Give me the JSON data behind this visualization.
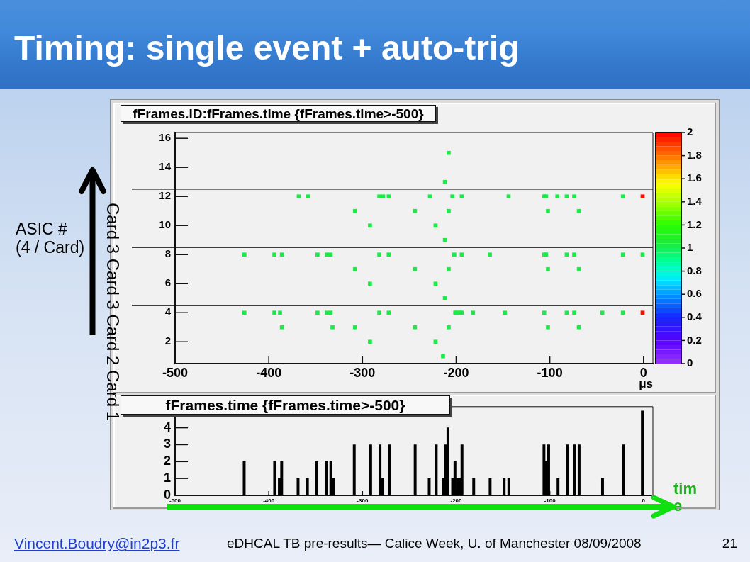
{
  "chart_data": [
    {
      "type": "scatter",
      "title": "Timing: single event + auto-trig",
      "subtitle": "fFrames.ID:fFrames.time {fFrames.time>-500}",
      "xlabel": "μs",
      "ylabel": "ASIC #\n(4 / Card)",
      "marker": "square",
      "x": [
        -208,
        -212,
        -368,
        -358,
        -282,
        -278,
        -272,
        -228,
        -204,
        -194,
        -144,
        -106,
        -104,
        -92,
        -82,
        -74,
        -22,
        -1,
        -308,
        -244,
        -208,
        -102,
        -69,
        -292,
        -222,
        -212,
        -426,
        -394,
        -386,
        -348,
        -338,
        -334,
        -282,
        -272,
        -202,
        -194,
        -164,
        -106,
        -104,
        -82,
        -74,
        -22,
        -1,
        -308,
        -244,
        -208,
        -102,
        -69,
        -292,
        -222,
        -212,
        -426,
        -394,
        -388,
        -348,
        -338,
        -334,
        -282,
        -272,
        -201,
        -199,
        -196,
        -194,
        -182,
        -148,
        -106,
        -82,
        -74,
        -44,
        -22,
        -1,
        -386,
        -332,
        -308,
        -244,
        -208,
        -102,
        -69,
        -292,
        -222,
        -214
      ],
      "values": [
        15,
        13,
        12,
        12,
        12,
        12,
        12,
        12,
        12,
        12,
        12,
        12,
        12,
        12,
        12,
        12,
        12,
        12,
        11,
        11,
        11,
        11,
        11,
        10,
        10,
        9,
        8,
        8,
        8,
        8,
        8,
        8,
        8,
        8,
        8,
        8,
        8,
        8,
        8,
        8,
        8,
        8,
        8,
        7,
        7,
        7,
        7,
        7,
        6,
        6,
        5,
        4,
        4,
        4,
        4,
        4,
        4,
        4,
        4,
        4,
        4,
        4,
        4,
        4,
        4,
        4,
        4,
        4,
        4,
        4,
        4,
        3,
        3,
        3,
        3,
        3,
        3,
        3,
        2,
        2,
        1
      ],
      "cvalues": [
        1,
        1,
        1,
        1,
        1,
        1,
        1,
        1,
        1,
        1,
        1,
        1,
        1,
        1,
        1,
        1,
        1,
        2,
        1,
        1,
        1,
        1,
        1,
        1,
        1,
        1,
        1,
        1,
        1,
        1,
        1,
        1,
        1,
        1,
        1,
        1,
        1,
        1,
        1,
        1,
        1,
        1,
        1,
        1,
        1,
        1,
        1,
        1,
        1,
        1,
        1,
        1,
        1,
        1,
        1,
        1,
        1,
        1,
        1,
        1,
        1,
        1,
        1,
        1,
        1,
        1,
        1,
        1,
        1,
        1,
        2,
        1,
        1,
        1,
        1,
        1,
        1,
        1,
        1,
        1,
        1
      ],
      "clim": [
        0,
        2
      ],
      "cticks": [
        0,
        0.2,
        0.4,
        0.6,
        0.8,
        1,
        1.2,
        1.4,
        1.6,
        1.8,
        2
      ],
      "xlim": [
        -500,
        10
      ],
      "xticks": [
        -500,
        -400,
        -300,
        -200,
        -100,
        0
      ],
      "ylim": [
        0.5,
        16.4
      ],
      "yticks": [
        2,
        4,
        6,
        8,
        10,
        12,
        14,
        16
      ],
      "ref_lines": [
        {
          "axis": "y",
          "value": 12.5,
          "color": "#000000"
        },
        {
          "axis": "y",
          "value": 8.5,
          "color": "#000000"
        },
        {
          "axis": "y",
          "value": 4.5,
          "color": "#000000"
        }
      ],
      "annotations": [
        "Card 3 Card 3 Card 2 Card 1"
      ]
    },
    {
      "type": "histogram",
      "title": "fFrames.time {fFrames.time>-500}",
      "xlabel": "time",
      "bins": [
        -500,
        -427.5,
        -425,
        -395,
        -392.5,
        -390,
        -387.5,
        -385,
        -370,
        -367.5,
        -360,
        -357.5,
        -350,
        -347.5,
        -340,
        -337.5,
        -335,
        -332.5,
        -330,
        -310,
        -307.5,
        -292.5,
        -290,
        -282.5,
        -280,
        -277.5,
        -272.5,
        -270,
        -245,
        -242.5,
        -230,
        -227.5,
        -222.5,
        -220,
        -215,
        -212.5,
        -210,
        -207.5,
        -205,
        -202.5,
        -200,
        -197.5,
        -195,
        -192.5,
        -182.5,
        -180,
        -165,
        -162.5,
        -150,
        -147.5,
        -145,
        -142.5,
        -107.5,
        -105,
        -102.5,
        -100,
        -92.5,
        -90,
        -82.5,
        -80,
        -75,
        -72.5,
        -70,
        -67.5,
        -45,
        -42.5,
        -22.5,
        -20,
        -2.5,
        0
      ],
      "values": [
        0,
        2,
        0,
        2,
        0,
        1,
        2,
        0,
        1,
        0,
        1,
        0,
        2,
        0,
        2,
        0,
        2,
        1,
        0,
        3,
        0,
        3,
        0,
        3,
        1,
        0,
        3,
        0,
        3,
        0,
        1,
        0,
        3,
        0,
        1,
        3,
        4,
        0,
        1,
        2,
        1,
        1,
        3,
        0,
        1,
        0,
        1,
        0,
        1,
        0,
        1,
        0,
        3,
        2,
        3,
        0,
        1,
        0,
        3,
        0,
        3,
        0,
        3,
        0,
        1,
        0,
        3,
        0,
        5
      ],
      "color": "#000000",
      "xlim": [
        -500,
        10
      ],
      "xticks": [
        -500,
        -400,
        -300,
        -200,
        -100,
        0
      ],
      "ylim": [
        0,
        5.25
      ],
      "yticks": [
        0,
        1,
        2,
        3,
        4
      ],
      "annotations": [
        "Vincent.Boudry@in2p3.fr",
        "eDHCAL TB pre-results— Calice Week, U. of Manchester 08/09/2008",
        "21"
      ]
    }
  ]
}
